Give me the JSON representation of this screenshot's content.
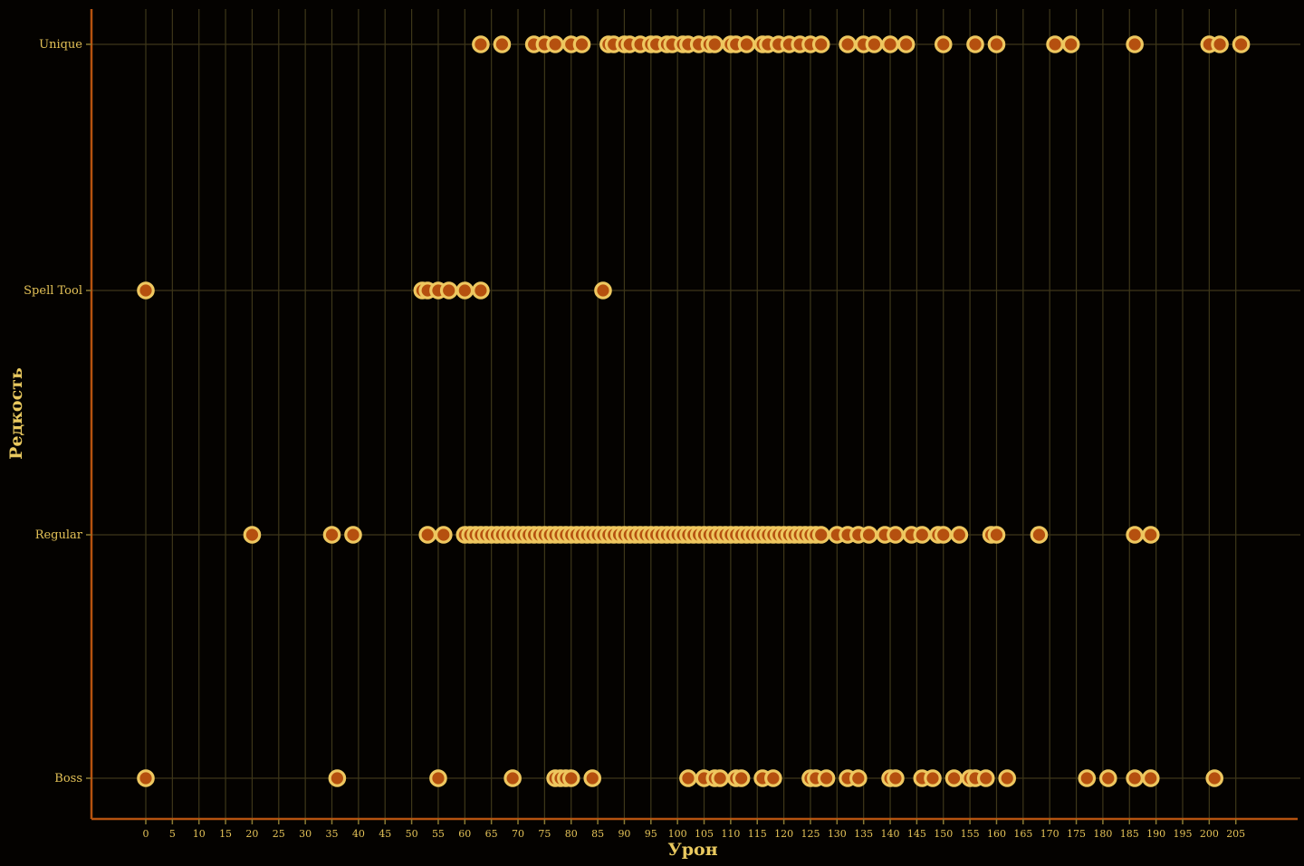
{
  "chart_data": {
    "type": "scatter",
    "variant": "strip-plot",
    "title": "",
    "xlabel": "Урон",
    "ylabel": "Редкость",
    "categories": [
      "Unique",
      "Spell Tool",
      "Regular",
      "Boss"
    ],
    "x_ticks": [
      0,
      5,
      10,
      15,
      20,
      25,
      30,
      35,
      40,
      45,
      50,
      55,
      60,
      65,
      70,
      75,
      80,
      85,
      90,
      95,
      100,
      105,
      110,
      115,
      120,
      125,
      130,
      135,
      140,
      145,
      150,
      155,
      160,
      165,
      170,
      175,
      180,
      185,
      190,
      195,
      200,
      205
    ],
    "xlim": [
      -10,
      217
    ],
    "grid": true,
    "legend": false,
    "series": [
      {
        "name": "Unique",
        "x": [
          63,
          67,
          73,
          75,
          77,
          80,
          82,
          87,
          88,
          90,
          91,
          93,
          95,
          96,
          98,
          99,
          101,
          102,
          104,
          106,
          107,
          110,
          111,
          113,
          116,
          117,
          119,
          121,
          123,
          125,
          127,
          132,
          135,
          137,
          140,
          143,
          150,
          156,
          160,
          171,
          174,
          186,
          200,
          202,
          206
        ]
      },
      {
        "name": "Spell Tool",
        "x": [
          0,
          52,
          53,
          55,
          57,
          60,
          63,
          86
        ]
      },
      {
        "name": "Regular",
        "x": [
          20,
          35,
          39,
          53,
          56,
          60,
          61,
          62,
          63,
          64,
          65,
          66,
          67,
          68,
          69,
          70,
          71,
          72,
          73,
          74,
          75,
          76,
          77,
          78,
          79,
          80,
          81,
          82,
          83,
          84,
          85,
          86,
          87,
          88,
          89,
          90,
          91,
          92,
          93,
          94,
          95,
          96,
          97,
          98,
          99,
          100,
          101,
          102,
          103,
          104,
          105,
          106,
          107,
          108,
          109,
          110,
          111,
          112,
          113,
          114,
          115,
          116,
          117,
          118,
          119,
          120,
          121,
          122,
          123,
          124,
          125,
          126,
          127,
          130,
          132,
          134,
          136,
          139,
          141,
          144,
          146,
          149,
          150,
          153,
          159,
          160,
          168,
          186,
          189
        ]
      },
      {
        "name": "Boss",
        "x": [
          0,
          36,
          55,
          69,
          77,
          78,
          79,
          80,
          84,
          102,
          105,
          107,
          108,
          111,
          112,
          116,
          118,
          125,
          126,
          128,
          132,
          134,
          140,
          141,
          146,
          148,
          152,
          155,
          156,
          158,
          162,
          177,
          181,
          186,
          189,
          201
        ]
      }
    ],
    "colors": {
      "background": "#040200",
      "point_fill": "#b5500f",
      "point_stroke": "#eec75f",
      "grid": "#3e3719",
      "spine": "#b5520f",
      "tick": "#8a7a33",
      "text": "#e4c257"
    }
  }
}
